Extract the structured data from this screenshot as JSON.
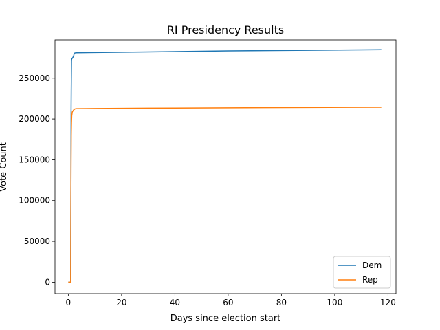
{
  "chart_data": {
    "type": "line",
    "title": "RI Presidency Results",
    "xlabel": "Days since election start",
    "ylabel": "Vote Count",
    "xlim": [
      -5,
      123
    ],
    "ylim": [
      -14000,
      297000
    ],
    "xticks": [
      0,
      20,
      40,
      60,
      80,
      100,
      120
    ],
    "yticks": [
      0,
      50000,
      100000,
      150000,
      200000,
      250000
    ],
    "grid": false,
    "legend_position": "bottom-right",
    "series": [
      {
        "name": "Dem",
        "color": "#1f77b4",
        "x": [
          0,
          0.9,
          1.0,
          1.05,
          1.1,
          1.2,
          1.3,
          1.5,
          1.8,
          2.0,
          2.2,
          2.5,
          3,
          10,
          30,
          60,
          90,
          110,
          117.5
        ],
        "y": [
          0,
          0,
          150000,
          210000,
          235000,
          272000,
          273500,
          274500,
          276000,
          277000,
          280500,
          281000,
          281200,
          281500,
          282300,
          283500,
          284300,
          284800,
          285000
        ]
      },
      {
        "name": "Rep",
        "color": "#ff7f0e",
        "x": [
          0,
          0.9,
          1.0,
          1.1,
          1.2,
          1.3,
          1.5,
          2.0,
          2.5,
          3,
          10,
          30,
          60,
          90,
          117.5
        ],
        "y": [
          0,
          0,
          120000,
          180000,
          196000,
          204000,
          208500,
          211000,
          212300,
          212600,
          212800,
          213200,
          213700,
          214100,
          214400
        ]
      }
    ]
  }
}
